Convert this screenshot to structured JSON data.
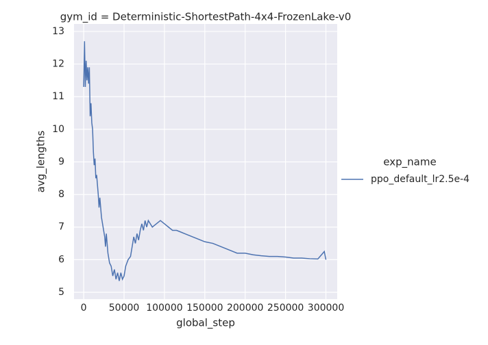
{
  "chart_data": {
    "type": "line",
    "title": "gym_id = Deterministic-ShortestPath-4x4-FrozenLake-v0",
    "x_label": "global_step",
    "y_label": "avg_lengths",
    "legend_title": "exp_name",
    "legend": "right",
    "grid": true,
    "x": [
      0,
      1000,
      2000,
      3000,
      4000,
      5000,
      6000,
      7000,
      8000,
      9000,
      10000,
      11000,
      12000,
      13000,
      14000,
      15000,
      16000,
      18000,
      19000,
      20000,
      22000,
      24000,
      26000,
      27000,
      28000,
      30000,
      32000,
      34000,
      36000,
      38000,
      40000,
      42000,
      44000,
      46000,
      48000,
      50000,
      52000,
      55000,
      58000,
      60000,
      62000,
      64000,
      66000,
      68000,
      70000,
      72000,
      74000,
      76000,
      78000,
      80000,
      85000,
      90000,
      95000,
      100000,
      105000,
      110000,
      115000,
      120000,
      125000,
      130000,
      135000,
      140000,
      145000,
      150000,
      160000,
      170000,
      180000,
      190000,
      200000,
      210000,
      220000,
      230000,
      240000,
      250000,
      260000,
      270000,
      280000,
      290000,
      298000,
      300000
    ],
    "series": [
      {
        "name": "ppo_default_lr2.5e-4",
        "color": "#4c72b0",
        "values": [
          11.3,
          12.7,
          11.3,
          12.1,
          11.5,
          11.9,
          11.4,
          11.9,
          10.4,
          10.8,
          10.2,
          10.0,
          9.3,
          8.9,
          9.1,
          8.5,
          8.6,
          8.0,
          7.6,
          7.9,
          7.3,
          7.0,
          6.7,
          6.4,
          6.8,
          6.2,
          5.9,
          5.8,
          5.5,
          5.7,
          5.4,
          5.6,
          5.35,
          5.6,
          5.4,
          5.5,
          5.8,
          6.0,
          6.1,
          6.4,
          6.7,
          6.5,
          6.8,
          6.6,
          6.9,
          7.1,
          6.9,
          7.2,
          7.0,
          7.2,
          7.0,
          7.1,
          7.2,
          7.1,
          7.0,
          6.9,
          6.9,
          6.85,
          6.8,
          6.75,
          6.7,
          6.65,
          6.6,
          6.55,
          6.5,
          6.4,
          6.3,
          6.2,
          6.2,
          6.15,
          6.12,
          6.1,
          6.1,
          6.08,
          6.05,
          6.05,
          6.03,
          6.02,
          6.25,
          6.0
        ]
      }
    ],
    "xlim": [
      -12000,
      314000
    ],
    "ylim": [
      4.79,
      13.23
    ],
    "xticks": [
      0,
      50000,
      100000,
      150000,
      200000,
      250000,
      300000
    ],
    "yticks": [
      5,
      6,
      7,
      8,
      9,
      10,
      11,
      12,
      13
    ]
  }
}
